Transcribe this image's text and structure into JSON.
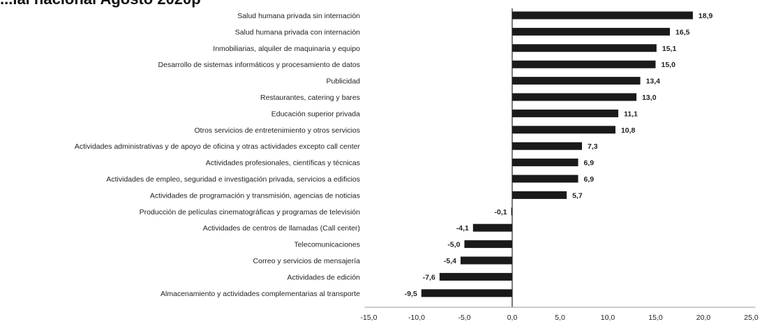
{
  "title": "...ial nacional Agosto 2020p",
  "chart_data": {
    "type": "bar",
    "orientation": "horizontal",
    "title": "...ial nacional Agosto 2020p",
    "xlabel": "",
    "ylabel": "",
    "xlim": [
      -15,
      25
    ],
    "xticks": [
      "-15,0",
      "-10,0",
      "-5,0",
      "0,0",
      "5,0",
      "10,0",
      "15,0",
      "20,0",
      "25,0"
    ],
    "grid": false,
    "bar_color": "#1a1a1a",
    "categories": [
      "Salud humana privada sin internación",
      "Salud humana privada con internación",
      "Inmobiliarias, alquiler de maquinaria y equipo",
      "Desarrollo de sistemas informáticos y procesamiento de datos",
      "Publicidad",
      "Restaurantes, catering y bares",
      "Educación superior privada",
      "Otros servicios de entretenimiento y otros servicios",
      "Actividades administrativas y de apoyo de oficina y otras actividades excepto call center",
      "Actividades profesionales, científicas y técnicas",
      "Actividades de empleo, seguridad e investigación privada, servicios a edificios",
      "Actividades de programación y transmisión,  agencias de noticias",
      "Producción de películas cinematográficas y programas de televisión",
      "Actividades de centros de llamadas (Call center)",
      "Telecomunicaciones",
      "Correo y servicios de mensajería",
      "Actividades de edición",
      "Almacenamiento y actividades complementarias al transporte"
    ],
    "values": [
      18.9,
      16.5,
      15.1,
      15.0,
      13.4,
      13.0,
      11.1,
      10.8,
      7.3,
      6.9,
      6.9,
      5.7,
      -0.1,
      -4.1,
      -5.0,
      -5.4,
      -7.6,
      -9.5
    ],
    "value_labels": [
      "18,9",
      "16,5",
      "15,1",
      "15,0",
      "13,4",
      "13,0",
      "11,1",
      "10,8",
      "7,3",
      "6,9",
      "6,9",
      "5,7",
      "-0,1",
      "-4,1",
      "-5,0",
      "-5,4",
      "-7,6",
      "-9,5"
    ]
  }
}
